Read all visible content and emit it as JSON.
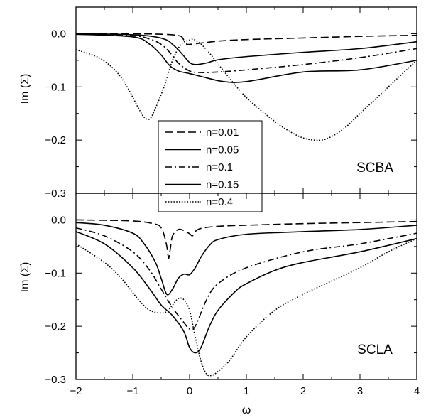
{
  "chart_data": [
    {
      "type": "line",
      "panel_label": "SCBA",
      "ylabel": "Im (Σ)",
      "xlim": [
        -2,
        4
      ],
      "ylim": [
        -0.3,
        0.05
      ],
      "yticks": [
        {
          "value": 0.0,
          "label": "0.0"
        },
        {
          "value": -0.1,
          "label": "−0.1"
        },
        {
          "value": -0.2,
          "label": "−0.2"
        },
        {
          "value": -0.3,
          "label": "−0.3"
        }
      ],
      "legend": {
        "placement": "center"
      },
      "series": [
        {
          "name": "n=0.01",
          "dash": "long-dash",
          "x": [
            -2,
            -1,
            -0.5,
            -0.3,
            -0.15,
            -0.1,
            -0.05,
            0,
            0.5,
            1,
            2,
            3,
            4
          ],
          "y": [
            0.0,
            0.0,
            -0.001,
            -0.002,
            -0.005,
            -0.012,
            -0.018,
            -0.02,
            -0.014,
            -0.011,
            -0.008,
            -0.005,
            -0.003
          ]
        },
        {
          "name": "n=0.05",
          "dash": "solid",
          "x": [
            -2,
            -1,
            -0.6,
            -0.4,
            -0.3,
            -0.2,
            -0.1,
            0,
            0.1,
            0.3,
            0.5,
            1,
            2,
            3,
            4
          ],
          "y": [
            0.0,
            -0.002,
            -0.006,
            -0.012,
            -0.02,
            -0.03,
            -0.042,
            -0.054,
            -0.058,
            -0.055,
            -0.049,
            -0.043,
            -0.035,
            -0.028,
            -0.015
          ]
        },
        {
          "name": "n=0.1",
          "dash": "dash-dot",
          "x": [
            -2,
            -1,
            -0.7,
            -0.5,
            -0.35,
            -0.2,
            0,
            0.2,
            0.5,
            1,
            2,
            3,
            4
          ],
          "y": [
            -0.001,
            -0.004,
            -0.01,
            -0.02,
            -0.035,
            -0.055,
            -0.07,
            -0.073,
            -0.072,
            -0.068,
            -0.058,
            -0.045,
            -0.028
          ]
        },
        {
          "name": "n=0.15",
          "dash": "solid",
          "x": [
            -2,
            -1,
            -0.7,
            -0.5,
            -0.35,
            -0.2,
            0,
            0.3,
            0.6,
            1,
            2,
            3,
            4
          ],
          "y": [
            -0.001,
            -0.006,
            -0.02,
            -0.04,
            -0.06,
            -0.07,
            -0.075,
            -0.083,
            -0.09,
            -0.09,
            -0.072,
            -0.068,
            -0.05
          ]
        },
        {
          "name": "n=0.4",
          "dash": "dotted",
          "x": [
            -2,
            -1.6,
            -1.3,
            -1.1,
            -0.9,
            -0.8,
            -0.7,
            -0.6,
            -0.45,
            -0.3,
            -0.15,
            0,
            0.1,
            0.3,
            0.6,
            1.0,
            1.5,
            1.8,
            2.0,
            2.2,
            2.4,
            2.7,
            3.0,
            3.4,
            3.7,
            4.0
          ],
          "y": [
            -0.03,
            -0.045,
            -0.07,
            -0.1,
            -0.14,
            -0.157,
            -0.16,
            -0.14,
            -0.1,
            -0.05,
            -0.02,
            -0.012,
            -0.012,
            -0.03,
            -0.07,
            -0.12,
            -0.165,
            -0.186,
            -0.196,
            -0.2,
            -0.198,
            -0.18,
            -0.15,
            -0.11,
            -0.08,
            -0.05
          ]
        }
      ]
    },
    {
      "type": "line",
      "panel_label": "SCLA",
      "xlabel": "ω",
      "ylabel": "Im (Σ)",
      "xlim": [
        -2,
        4
      ],
      "ylim": [
        -0.3,
        0.05
      ],
      "xticks": [
        {
          "value": -2,
          "label": "−2"
        },
        {
          "value": -1,
          "label": "−1"
        },
        {
          "value": 0,
          "label": "0"
        },
        {
          "value": 1,
          "label": "1"
        },
        {
          "value": 2,
          "label": "2"
        },
        {
          "value": 3,
          "label": "3"
        },
        {
          "value": 4,
          "label": "4"
        }
      ],
      "yticks": [
        {
          "value": 0.0,
          "label": "0.0"
        },
        {
          "value": -0.1,
          "label": "−0.1"
        },
        {
          "value": -0.2,
          "label": "−0.2"
        },
        {
          "value": -0.3,
          "label": "−0.3"
        }
      ],
      "series": [
        {
          "name": "n=0.01",
          "dash": "long-dash",
          "x": [
            -2,
            -1,
            -0.6,
            -0.5,
            -0.45,
            -0.4,
            -0.37,
            -0.34,
            -0.3,
            -0.2,
            -0.1,
            0,
            0.05,
            0.1,
            0.2,
            0.5,
            1,
            2,
            3,
            4
          ],
          "y": [
            0.0,
            -0.002,
            -0.008,
            -0.015,
            -0.028,
            -0.05,
            -0.072,
            -0.055,
            -0.03,
            -0.018,
            -0.02,
            -0.026,
            -0.03,
            -0.022,
            -0.016,
            -0.012,
            -0.01,
            -0.007,
            -0.005,
            -0.003
          ]
        },
        {
          "name": "n=0.05",
          "dash": "solid",
          "x": [
            -2,
            -1.5,
            -1,
            -0.8,
            -0.6,
            -0.5,
            -0.4,
            -0.3,
            -0.2,
            -0.1,
            0,
            0.1,
            0.2,
            0.35,
            0.5,
            1,
            2,
            3,
            4
          ],
          "y": [
            -0.005,
            -0.01,
            -0.025,
            -0.045,
            -0.08,
            -0.11,
            -0.14,
            -0.13,
            -0.11,
            -0.102,
            -0.103,
            -0.09,
            -0.07,
            -0.048,
            -0.037,
            -0.027,
            -0.022,
            -0.018,
            -0.01
          ]
        },
        {
          "name": "n=0.1",
          "dash": "dash-dot",
          "x": [
            -2,
            -1.5,
            -1,
            -0.7,
            -0.5,
            -0.3,
            -0.1,
            0,
            0.1,
            0.3,
            0.5,
            1,
            2,
            3,
            4
          ],
          "y": [
            -0.015,
            -0.03,
            -0.06,
            -0.095,
            -0.13,
            -0.165,
            -0.193,
            -0.205,
            -0.2,
            -0.15,
            -0.12,
            -0.09,
            -0.06,
            -0.045,
            -0.025
          ]
        },
        {
          "name": "n=0.15",
          "dash": "solid",
          "x": [
            -2,
            -1.5,
            -1,
            -0.7,
            -0.5,
            -0.3,
            -0.1,
            0,
            0.1,
            0.2,
            0.35,
            0.5,
            0.8,
            1,
            1.5,
            2,
            3,
            4
          ],
          "y": [
            -0.022,
            -0.045,
            -0.09,
            -0.13,
            -0.16,
            -0.18,
            -0.21,
            -0.24,
            -0.25,
            -0.24,
            -0.2,
            -0.17,
            -0.135,
            -0.12,
            -0.095,
            -0.08,
            -0.06,
            -0.035
          ]
        },
        {
          "name": "n=0.4",
          "dash": "dotted",
          "x": [
            -2,
            -1.5,
            -1.2,
            -0.9,
            -0.7,
            -0.5,
            -0.4,
            -0.3,
            -0.2,
            -0.1,
            0,
            0.1,
            0.2,
            0.3,
            0.4,
            0.5,
            0.7,
            1.0,
            1.5,
            2.0,
            2.5,
            3.0,
            3.5,
            4.0
          ],
          "y": [
            -0.045,
            -0.08,
            -0.11,
            -0.15,
            -0.17,
            -0.175,
            -0.172,
            -0.16,
            -0.148,
            -0.15,
            -0.17,
            -0.22,
            -0.265,
            -0.29,
            -0.292,
            -0.285,
            -0.265,
            -0.22,
            -0.17,
            -0.14,
            -0.115,
            -0.09,
            -0.06,
            -0.035
          ]
        }
      ]
    }
  ]
}
